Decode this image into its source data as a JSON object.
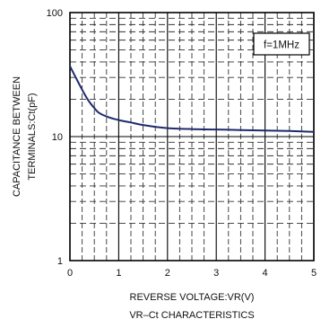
{
  "chart_data": {
    "type": "line",
    "title": "VR–Ct CHARACTERISTICS",
    "xlabel": "REVERSE VOLTAGE:VR(V)",
    "ylabel_lines": [
      "CAPACITANCE BETWEEN",
      "TERMINALS:Ct(pF)"
    ],
    "xlim": [
      0,
      5
    ],
    "ylim": [
      1,
      100
    ],
    "yscale": "log",
    "x_ticks": [
      0,
      1,
      2,
      3,
      4,
      5
    ],
    "y_ticks": [
      1,
      10,
      100
    ],
    "x_tick_labels": [
      "0",
      "1",
      "2",
      "3",
      "4",
      "5"
    ],
    "y_tick_labels": [
      "1",
      "10",
      "100"
    ],
    "grid": true,
    "annotation": "f=1MHz",
    "series": [
      {
        "color": "#1f2a6b",
        "x": [
          0,
          0.1,
          0.2,
          0.3,
          0.4,
          0.5,
          0.6,
          0.8,
          1.0,
          1.25,
          1.5,
          2.0,
          2.5,
          3.0,
          3.5,
          4.0,
          4.5,
          5.0
        ],
        "y": [
          37,
          31,
          26,
          22,
          19,
          17,
          15.5,
          14.3,
          13.6,
          13.0,
          12.4,
          11.7,
          11.5,
          11.4,
          11.3,
          11.2,
          11.1,
          10.9
        ]
      }
    ]
  }
}
